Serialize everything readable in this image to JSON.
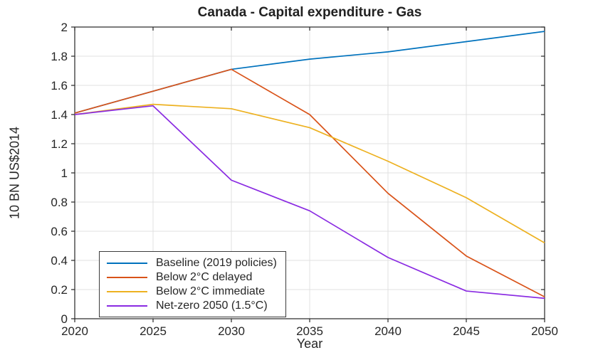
{
  "chart_data": {
    "type": "line",
    "title": "Canada - Capital expenditure - Gas",
    "xlabel": "Year",
    "ylabel": "10 BN US$2014",
    "xlim": [
      2020,
      2050
    ],
    "ylim": [
      0,
      2
    ],
    "grid": true,
    "legend_position": "lower-left",
    "x": [
      2020,
      2025,
      2030,
      2035,
      2040,
      2045,
      2050
    ],
    "xtick_labels": [
      "2020",
      "2025",
      "2030",
      "2035",
      "2040",
      "2045",
      "2050"
    ],
    "ytick_values": [
      0,
      0.2,
      0.4,
      0.6,
      0.8,
      1,
      1.2,
      1.4,
      1.6,
      1.8,
      2
    ],
    "ytick_labels": [
      "0",
      "0.2",
      "0.4",
      "0.6",
      "0.8",
      "1",
      "1.2",
      "1.4",
      "1.6",
      "1.8",
      "2"
    ],
    "series": [
      {
        "name": "Baseline (2019 policies)",
        "color": "#0072BD",
        "values": [
          1.41,
          1.56,
          1.71,
          1.78,
          1.83,
          1.9,
          1.97
        ]
      },
      {
        "name": "Below 2°C delayed",
        "color": "#D95319",
        "values": [
          1.41,
          1.56,
          1.71,
          1.4,
          0.86,
          0.43,
          0.15
        ]
      },
      {
        "name": "Below 2°C immediate",
        "color": "#EDB120",
        "values": [
          1.4,
          1.47,
          1.44,
          1.31,
          1.08,
          0.83,
          0.52
        ]
      },
      {
        "name": "Net-zero 2050 (1.5°C)",
        "color": "#8A2BE2",
        "values": [
          1.4,
          1.46,
          0.95,
          0.74,
          0.42,
          0.19,
          0.14
        ]
      }
    ],
    "colors": {
      "axis": "#262626",
      "grid": "#E0E0E0",
      "background": "#FFFFFF"
    }
  }
}
